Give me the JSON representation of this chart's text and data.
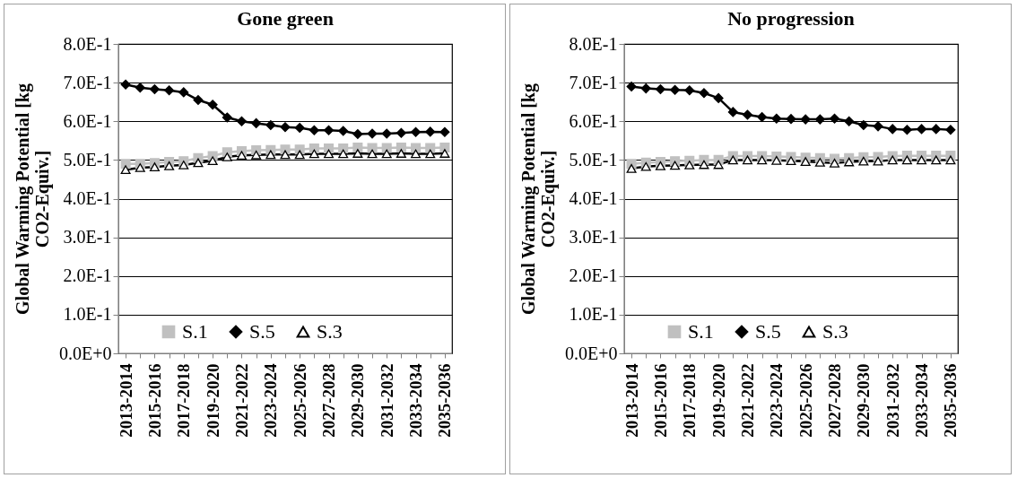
{
  "chart_data": [
    {
      "type": "line",
      "title": "Gone green",
      "ylabel": "Global Warming Potential [kg CO2-Equiv.]",
      "categories": [
        "2013-2014",
        null,
        "2015-2016",
        null,
        "2017-2018",
        null,
        "2019-2020",
        null,
        "2021-2022",
        null,
        "2023-2024",
        null,
        "2025-2026",
        null,
        "2027-2028",
        null,
        "2029-2030",
        null,
        "2031-2032",
        null,
        "2033-2034",
        null,
        "2035-2036"
      ],
      "series": [
        {
          "name": "S.1",
          "color": "#c0c0c0",
          "marker": "square",
          "values": [
            0.49,
            0.49,
            0.492,
            0.495,
            0.497,
            0.505,
            0.51,
            0.52,
            0.523,
            0.525,
            0.526,
            0.527,
            0.527,
            0.53,
            0.53,
            0.53,
            0.532,
            0.531,
            0.531,
            0.532,
            0.531,
            0.531,
            0.532
          ]
        },
        {
          "name": "S.5",
          "color": "#000000",
          "marker": "diamond",
          "values": [
            0.695,
            0.687,
            0.683,
            0.68,
            0.675,
            0.655,
            0.643,
            0.61,
            0.6,
            0.595,
            0.59,
            0.585,
            0.583,
            0.577,
            0.577,
            0.575,
            0.567,
            0.568,
            0.568,
            0.57,
            0.572,
            0.573,
            0.572
          ]
        },
        {
          "name": "S.3",
          "color": "#000000",
          "marker": "triangle",
          "values": [
            0.475,
            0.48,
            0.482,
            0.485,
            0.487,
            0.493,
            0.498,
            0.508,
            0.512,
            0.513,
            0.514,
            0.514,
            0.514,
            0.516,
            0.516,
            0.516,
            0.517,
            0.516,
            0.516,
            0.517,
            0.516,
            0.516,
            0.517
          ]
        }
      ],
      "ylim": [
        0,
        0.8
      ],
      "yticks": [
        {
          "value": 0,
          "label": "0.0E+0"
        },
        {
          "value": 0.1,
          "label": "1.0E-1"
        },
        {
          "value": 0.2,
          "label": "2.0E-1"
        },
        {
          "value": 0.3,
          "label": "3.0E-1"
        },
        {
          "value": 0.4,
          "label": "4.0E-1"
        },
        {
          "value": 0.5,
          "label": "5.0E-1"
        },
        {
          "value": 0.6,
          "label": "6.0E-1"
        },
        {
          "value": 0.7,
          "label": "7.0E-1"
        },
        {
          "value": 0.8,
          "label": "8.0E-1"
        }
      ],
      "grid": "y",
      "legend": "bottom"
    },
    {
      "type": "line",
      "title": "No progression",
      "ylabel": "Global Warming Potential [kg CO2-Equiv.]",
      "categories": [
        "2013-2014",
        null,
        "2015-2016",
        null,
        "2017-2018",
        null,
        "2019-2020",
        null,
        "2021-2022",
        null,
        "2023-2024",
        null,
        "2025-2026",
        null,
        "2027-2028",
        null,
        "2029-2030",
        null,
        "2031-2032",
        null,
        "2033-2034",
        null,
        "2035-2036"
      ],
      "series": [
        {
          "name": "S.1",
          "color": "#c0c0c0",
          "marker": "square",
          "values": [
            0.49,
            0.493,
            0.495,
            0.497,
            0.498,
            0.5,
            0.5,
            0.51,
            0.51,
            0.51,
            0.509,
            0.508,
            0.506,
            0.505,
            0.503,
            0.505,
            0.507,
            0.508,
            0.51,
            0.511,
            0.511,
            0.511,
            0.511
          ]
        },
        {
          "name": "S.5",
          "color": "#000000",
          "marker": "diamond",
          "values": [
            0.69,
            0.685,
            0.683,
            0.681,
            0.68,
            0.673,
            0.66,
            0.624,
            0.617,
            0.611,
            0.607,
            0.606,
            0.605,
            0.605,
            0.607,
            0.6,
            0.59,
            0.587,
            0.58,
            0.578,
            0.58,
            0.58,
            0.578
          ]
        },
        {
          "name": "S.3",
          "color": "#000000",
          "marker": "triangle",
          "values": [
            0.478,
            0.483,
            0.485,
            0.486,
            0.487,
            0.488,
            0.488,
            0.5,
            0.5,
            0.5,
            0.499,
            0.498,
            0.496,
            0.494,
            0.492,
            0.495,
            0.497,
            0.497,
            0.5,
            0.5,
            0.5,
            0.5,
            0.5
          ]
        }
      ],
      "ylim": [
        0,
        0.8
      ],
      "yticks": [
        {
          "value": 0,
          "label": "0.0E+0"
        },
        {
          "value": 0.1,
          "label": "1.0E-1"
        },
        {
          "value": 0.2,
          "label": "2.0E-1"
        },
        {
          "value": 0.3,
          "label": "3.0E-1"
        },
        {
          "value": 0.4,
          "label": "4.0E-1"
        },
        {
          "value": 0.5,
          "label": "5.0E-1"
        },
        {
          "value": 0.6,
          "label": "6.0E-1"
        },
        {
          "value": 0.7,
          "label": "7.0E-1"
        },
        {
          "value": 0.8,
          "label": "8.0E-1"
        }
      ],
      "grid": "y",
      "legend": "bottom"
    }
  ]
}
